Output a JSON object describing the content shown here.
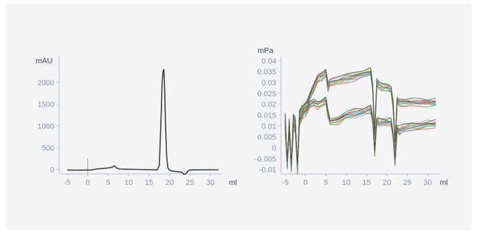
{
  "chart_data": [
    {
      "type": "line",
      "title": "",
      "ylabel": "mAU",
      "xlabel": "ml",
      "xlim": [
        -7,
        33
      ],
      "ylim": [
        -100,
        2600
      ],
      "xticks": [
        -5,
        0,
        5,
        10,
        15,
        20,
        25,
        30
      ],
      "yticks": [
        0,
        500,
        1000,
        1500,
        2000
      ],
      "grid": false,
      "line_color": "#3a3a3a",
      "marker_color": "#8db84a",
      "marker_x": 0,
      "series": [
        {
          "x": [
            -5,
            -3,
            -1,
            0,
            1,
            2,
            3,
            4,
            5,
            6,
            6.5,
            7,
            7.5,
            8,
            10,
            12,
            14,
            16,
            17,
            17.5,
            18,
            18.2,
            18.4,
            18.6,
            18.8,
            19.0,
            19.3,
            19.6,
            20,
            21,
            22,
            23,
            23.5,
            24,
            24.5,
            25,
            26,
            28,
            30,
            32
          ],
          "y": [
            -10,
            -15,
            -12,
            -10,
            -8,
            10,
            20,
            30,
            35,
            55,
            90,
            40,
            20,
            10,
            5,
            3,
            0,
            -5,
            -10,
            100,
            1400,
            2000,
            2250,
            2300,
            1900,
            1100,
            300,
            40,
            -20,
            -40,
            -50,
            -60,
            -110,
            -100,
            -30,
            -10,
            -8,
            -5,
            -5,
            -5
          ]
        }
      ]
    },
    {
      "type": "line",
      "title": "",
      "ylabel": "mPa",
      "xlabel": "ml",
      "xlim": [
        -6,
        33
      ],
      "ylim": [
        -0.012,
        0.042
      ],
      "xticks": [
        -5,
        0,
        5,
        10,
        15,
        20,
        25,
        30
      ],
      "yticks": [
        0.04,
        0.035,
        0.03,
        0.025,
        0.02,
        0.015,
        0.01,
        0.005,
        0,
        -0.005,
        -0.01
      ],
      "ytick_labels": [
        "0.04",
        "0.035",
        "0.03",
        "0.025",
        "0.02",
        "0.015",
        "0.01",
        "0.005",
        "0",
        "-0.005",
        "-0.01"
      ],
      "grid": false,
      "series_colors": [
        "#d04a3a",
        "#3a8fd0",
        "#4ab04a",
        "#e09030",
        "#8a4ac0",
        "#30b0b0",
        "#c0c040",
        "#505050",
        "#e06090",
        "#2a6a2a"
      ],
      "series": [
        {
          "x": [
            -5,
            -4.5,
            -4,
            -3.5,
            -3,
            -2.5,
            -2,
            -1.5,
            -1,
            -0.5,
            0,
            0.5,
            1,
            2,
            3,
            4,
            5,
            5.5,
            6,
            8,
            10,
            12,
            14,
            16,
            16.5,
            17,
            17.5,
            18,
            19,
            20,
            21,
            21.5,
            22,
            22.5,
            23,
            24,
            26,
            28,
            30,
            32
          ],
          "y": [
            0.015,
            -0.008,
            0.012,
            -0.009,
            0.014,
            0.012,
            -0.01,
            0.016,
            0.018,
            0.019,
            0.02,
            0.021,
            0.024,
            0.028,
            0.032,
            0.033,
            0.035,
            0.028,
            0.03,
            0.031,
            0.032,
            0.033,
            0.034,
            0.035,
            0.028,
            0.006,
            0.03,
            0.029,
            0.028,
            0.028,
            0.027,
            0.02,
            0.002,
            0.022,
            0.021,
            0.021,
            0.021,
            0.021,
            0.021,
            0.021
          ]
        },
        {
          "x": [
            -5,
            -4.5,
            -4,
            -3.5,
            -3,
            -2.5,
            -2,
            -1.5,
            -1,
            -0.5,
            0,
            0.5,
            1,
            2,
            3,
            4,
            5,
            5.5,
            6,
            8,
            10,
            12,
            14,
            16,
            16.5,
            17,
            17.5,
            18,
            19,
            20,
            21,
            21.5,
            22,
            22.5,
            23,
            24,
            26,
            28,
            30,
            32
          ],
          "y": [
            0.01,
            -0.007,
            0.008,
            -0.008,
            0.01,
            0.009,
            -0.008,
            0.012,
            0.014,
            0.016,
            0.017,
            0.018,
            0.02,
            0.021,
            0.02,
            0.021,
            0.022,
            0.016,
            0.012,
            0.013,
            0.015,
            0.016,
            0.017,
            0.018,
            0.013,
            -0.002,
            0.013,
            0.012,
            0.012,
            0.012,
            0.012,
            0.006,
            -0.006,
            0.009,
            0.008,
            0.009,
            0.01,
            0.01,
            0.011,
            0.011
          ]
        }
      ]
    }
  ]
}
